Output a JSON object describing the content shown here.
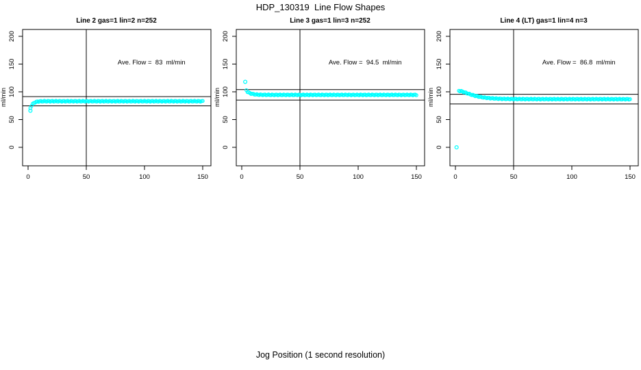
{
  "page_title": "HDP_130319  Line Flow Shapes",
  "x_axis_label": "Jog Position (1 second resolution)",
  "colors": {
    "points": "#00FFFF",
    "axis": "#000000",
    "background": "#FFFFFF"
  },
  "chart_data": [
    {
      "type": "scatter",
      "title": "Line 2 gas=1 lin=2 n=252",
      "annotation": "Ave. Flow =  83  ml/min",
      "ave_flow": 83,
      "n": 252,
      "ylabel": "ml/min",
      "xlim": [
        0,
        150
      ],
      "ylim": [
        0,
        200
      ],
      "x_ticks": [
        0,
        50,
        100,
        150
      ],
      "y_ticks": [
        0,
        50,
        100,
        150,
        200
      ],
      "ref_line_upper": 91.3,
      "ref_line_lower": 74.7,
      "vline_x": 50,
      "annotation_pos": [
        106,
        153
      ],
      "outliers": [
        [
          2,
          66
        ]
      ],
      "curve_samples": [
        [
          2,
          71
        ],
        [
          3,
          75
        ],
        [
          4,
          78
        ],
        [
          5,
          80
        ],
        [
          6,
          81
        ],
        [
          8,
          82.3
        ],
        [
          10,
          82.8
        ],
        [
          14,
          83
        ],
        [
          25,
          83
        ],
        [
          50,
          83
        ],
        [
          75,
          83
        ],
        [
          100,
          83
        ],
        [
          125,
          83
        ],
        [
          150,
          83
        ]
      ]
    },
    {
      "type": "scatter",
      "title": "Line 3 gas=1 lin=3 n=252",
      "annotation": "Ave. Flow =  94.5  ml/min",
      "ave_flow": 94.5,
      "n": 252,
      "ylabel": "ml/min",
      "xlim": [
        0,
        150
      ],
      "ylim": [
        0,
        200
      ],
      "x_ticks": [
        0,
        50,
        100,
        150
      ],
      "y_ticks": [
        0,
        50,
        100,
        150,
        200
      ],
      "ref_line_upper": 104,
      "ref_line_lower": 85,
      "vline_x": 50,
      "annotation_pos": [
        106,
        153
      ],
      "outliers": [
        [
          3,
          118
        ]
      ],
      "curve_samples": [
        [
          4,
          103
        ],
        [
          5,
          100
        ],
        [
          6,
          98.5
        ],
        [
          8,
          96.8
        ],
        [
          10,
          95.8
        ],
        [
          12,
          95.2
        ],
        [
          15,
          94.8
        ],
        [
          20,
          94.6
        ],
        [
          25,
          94.5
        ],
        [
          50,
          94.5
        ],
        [
          75,
          94.5
        ],
        [
          100,
          94.5
        ],
        [
          125,
          94.5
        ],
        [
          150,
          94.5
        ]
      ]
    },
    {
      "type": "scatter",
      "title": "Line 4 (LT) gas=1 lin=4 n=3",
      "annotation": "Ave. Flow =  86.8  ml/min",
      "ave_flow": 86.8,
      "n": 3,
      "ylabel": "ml/min",
      "xlim": [
        0,
        150
      ],
      "ylim": [
        0,
        200
      ],
      "x_ticks": [
        0,
        50,
        100,
        150
      ],
      "y_ticks": [
        0,
        50,
        100,
        150,
        200
      ],
      "ref_line_upper": 95.5,
      "ref_line_lower": 78.1,
      "vline_x": 50,
      "annotation_pos": [
        106,
        153
      ],
      "outliers": [
        [
          1,
          0
        ]
      ],
      "curve_samples": [
        [
          3,
          102
        ],
        [
          4,
          101.5
        ],
        [
          5,
          101
        ],
        [
          6,
          100.5
        ],
        [
          8,
          99
        ],
        [
          10,
          97.5
        ],
        [
          12,
          96
        ],
        [
          15,
          94
        ],
        [
          18,
          92.3
        ],
        [
          22,
          90.5
        ],
        [
          26,
          89.3
        ],
        [
          30,
          88.5
        ],
        [
          35,
          87.8
        ],
        [
          40,
          87.4
        ],
        [
          50,
          87
        ],
        [
          60,
          86.9
        ],
        [
          80,
          86.8
        ],
        [
          100,
          86.8
        ],
        [
          125,
          86.8
        ],
        [
          150,
          86.7
        ]
      ]
    }
  ]
}
